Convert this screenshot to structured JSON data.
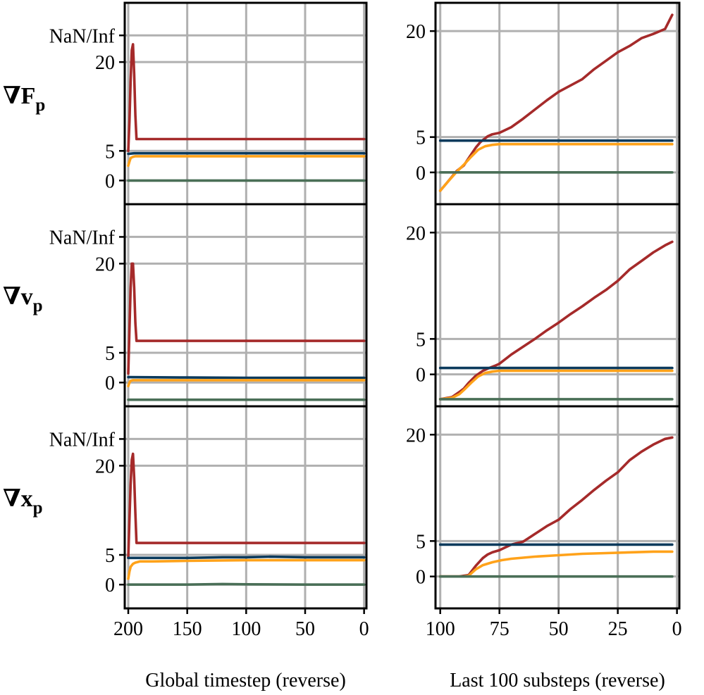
{
  "chart_data": {
    "type": "line",
    "rows": [
      {
        "label_main": "∇F",
        "label_sub": "p"
      },
      {
        "label_main": "∇v",
        "label_sub": "p"
      },
      {
        "label_main": "∇x",
        "label_sub": "p"
      }
    ],
    "columns": [
      {
        "xlabel": "Global timestep (reverse)",
        "xlim": [
          203,
          -2
        ],
        "xticks": [
          200,
          150,
          100,
          50,
          0
        ]
      },
      {
        "xlabel": "Last 100 substeps (reverse)",
        "xlim": [
          102,
          -1
        ],
        "xticks": [
          100,
          75,
          50,
          25,
          0
        ]
      }
    ],
    "colors": {
      "red": "#a52a2a",
      "blue": "#0b3a5c",
      "orange": "#ffa21a",
      "green": "#4a6f57"
    },
    "panels": [
      {
        "row": 0,
        "col": 0,
        "ylim": [
          -4,
          30
        ],
        "yticks": [
          {
            "v": 0,
            "label": "0"
          },
          {
            "v": 5,
            "label": "5"
          },
          {
            "v": 20,
            "label": "20"
          },
          {
            "v": 24.5,
            "label": "NaN/Inf"
          }
        ],
        "series": [
          {
            "name": "red",
            "color": "#a52a2a",
            "x": [
              200,
              199,
              198,
              197,
              196,
              195,
              194,
              193,
              192,
              180,
              0
            ],
            "y": [
              5,
              10,
              17,
              22,
              23,
              18,
              11,
              7,
              7,
              7,
              7
            ]
          },
          {
            "name": "blue",
            "color": "#0b3a5c",
            "x": [
              200,
              195,
              150,
              100,
              50,
              0
            ],
            "y": [
              4.5,
              4.6,
              4.6,
              4.6,
              4.6,
              4.6
            ]
          },
          {
            "name": "orange",
            "color": "#ffa21a",
            "x": [
              200,
              199,
              198,
              196,
              194,
              190,
              150,
              100,
              50,
              0
            ],
            "y": [
              2.5,
              3.2,
              3.8,
              4,
              4.1,
              4.1,
              4.1,
              4.1,
              4.1,
              4.1
            ]
          },
          {
            "name": "green",
            "color": "#4a6f57",
            "x": [
              200,
              0
            ],
            "y": [
              0,
              0
            ]
          }
        ]
      },
      {
        "row": 0,
        "col": 1,
        "ylim": [
          -4.5,
          24
        ],
        "yticks": [
          {
            "v": 0,
            "label": "0"
          },
          {
            "v": 5,
            "label": "5"
          },
          {
            "v": 20,
            "label": "20"
          }
        ],
        "series": [
          {
            "name": "red",
            "color": "#a52a2a",
            "x": [
              100,
              97,
              93,
              90,
              88,
              85,
              83,
              80,
              78,
              75,
              70,
              65,
              60,
              55,
              50,
              45,
              40,
              35,
              30,
              25,
              20,
              15,
              10,
              5,
              2
            ],
            "y": [
              -2.6,
              -1.4,
              0.2,
              1.0,
              2.0,
              3.5,
              4.3,
              5.1,
              5.4,
              5.6,
              6.4,
              7.6,
              8.9,
              10.2,
              11.4,
              12.3,
              13.2,
              14.6,
              15.8,
              17.0,
              17.9,
              19.0,
              19.6,
              20.3,
              22.3
            ]
          },
          {
            "name": "blue",
            "color": "#0b3a5c",
            "x": [
              100,
              2
            ],
            "y": [
              4.5,
              4.5
            ]
          },
          {
            "name": "orange",
            "color": "#ffa21a",
            "x": [
              100,
              97,
              93,
              90,
              87,
              84,
              81,
              78,
              75,
              70,
              50,
              25,
              2
            ],
            "y": [
              -2.6,
              -1.4,
              0.1,
              1.1,
              2.2,
              3.2,
              3.7,
              3.9,
              4.0,
              4.0,
              4.0,
              4.0,
              4.0
            ]
          },
          {
            "name": "green",
            "color": "#4a6f57",
            "x": [
              100,
              2
            ],
            "y": [
              0,
              0
            ]
          }
        ]
      },
      {
        "row": 1,
        "col": 0,
        "ylim": [
          -4,
          30
        ],
        "yticks": [
          {
            "v": 0,
            "label": "0"
          },
          {
            "v": 5,
            "label": "5"
          },
          {
            "v": 20,
            "label": "20"
          },
          {
            "v": 24.5,
            "label": "NaN/Inf"
          }
        ],
        "series": [
          {
            "name": "red",
            "color": "#a52a2a",
            "x": [
              200,
              199,
              198,
              197,
              196,
              195,
              194,
              193,
              192,
              180,
              0
            ],
            "y": [
              1.5,
              9,
              16,
              20,
              20,
              16,
              10,
              7,
              7,
              7,
              7
            ]
          },
          {
            "name": "blue",
            "color": "#0b3a5c",
            "x": [
              200,
              150,
              100,
              50,
              0
            ],
            "y": [
              0.9,
              0.85,
              0.8,
              0.8,
              0.8
            ]
          },
          {
            "name": "orange",
            "color": "#ffa21a",
            "x": [
              200,
              199,
              198,
              196,
              190,
              0
            ],
            "y": [
              -0.6,
              0,
              0.3,
              0.4,
              0.4,
              0.4
            ]
          },
          {
            "name": "green",
            "color": "#4a6f57",
            "x": [
              200,
              0
            ],
            "y": [
              -2.9,
              -2.9
            ]
          }
        ]
      },
      {
        "row": 1,
        "col": 1,
        "ylim": [
          -4.5,
          24
        ],
        "yticks": [
          {
            "v": 0,
            "label": "0"
          },
          {
            "v": 5,
            "label": "5"
          },
          {
            "v": 20,
            "label": "20"
          }
        ],
        "series": [
          {
            "name": "red",
            "color": "#a52a2a",
            "x": [
              100,
              95,
              92,
              90,
              88,
              85,
              82,
              80,
              77,
              75,
              70,
              65,
              60,
              55,
              50,
              45,
              40,
              35,
              30,
              25,
              20,
              15,
              10,
              5,
              2
            ],
            "y": [
              -3.5,
              -3.2,
              -2.5,
              -2.0,
              -1.2,
              -0.2,
              0.5,
              0.8,
              1.2,
              1.5,
              2.8,
              3.9,
              5.0,
              6.2,
              7.3,
              8.5,
              9.6,
              10.8,
              11.9,
              13.2,
              14.8,
              16.0,
              17.2,
              18.2,
              18.7
            ]
          },
          {
            "name": "blue",
            "color": "#0b3a5c",
            "x": [
              100,
              2
            ],
            "y": [
              0.9,
              0.9
            ]
          },
          {
            "name": "orange",
            "color": "#ffa21a",
            "x": [
              100,
              95,
              92,
              90,
              87,
              84,
              81,
              78,
              75,
              70,
              50,
              25,
              2
            ],
            "y": [
              -3.5,
              -3.3,
              -2.8,
              -2.2,
              -1.2,
              -0.3,
              0.2,
              0.4,
              0.5,
              0.5,
              0.5,
              0.5,
              0.5
            ]
          },
          {
            "name": "green",
            "color": "#4a6f57",
            "x": [
              100,
              2
            ],
            "y": [
              -3.5,
              -3.5
            ]
          }
        ]
      },
      {
        "row": 2,
        "col": 0,
        "ylim": [
          -4,
          30
        ],
        "yticks": [
          {
            "v": 0,
            "label": "0"
          },
          {
            "v": 5,
            "label": "5"
          },
          {
            "v": 20,
            "label": "20"
          },
          {
            "v": 24.5,
            "label": "NaN/Inf"
          }
        ],
        "series": [
          {
            "name": "red",
            "color": "#a52a2a",
            "x": [
              200,
              199,
              198,
              197,
              196,
              195,
              194,
              193,
              192,
              180,
              0
            ],
            "y": [
              4.5,
              11,
              17,
              21,
              22,
              18,
              12,
              7,
              7,
              7,
              7
            ]
          },
          {
            "name": "blue",
            "color": "#0b3a5c",
            "x": [
              200,
              180,
              150,
              120,
              100,
              80,
              50,
              20,
              0
            ],
            "y": [
              4.5,
              4.5,
              4.5,
              4.6,
              4.6,
              4.7,
              4.6,
              4.6,
              4.6
            ]
          },
          {
            "name": "orange",
            "color": "#ffa21a",
            "x": [
              200,
              199,
              198,
              196,
              194,
              190,
              180,
              150,
              100,
              50,
              0
            ],
            "y": [
              1,
              2.2,
              3,
              3.5,
              3.7,
              3.9,
              3.9,
              4.0,
              4.1,
              4.1,
              4.1
            ]
          },
          {
            "name": "green",
            "color": "#4a6f57",
            "x": [
              200,
              150,
              120,
              100,
              50,
              0
            ],
            "y": [
              0,
              0,
              0.1,
              0.05,
              0,
              0
            ]
          }
        ]
      },
      {
        "row": 2,
        "col": 1,
        "ylim": [
          -4.5,
          24
        ],
        "yticks": [
          {
            "v": 0,
            "label": "0"
          },
          {
            "v": 5,
            "label": "5"
          },
          {
            "v": 20,
            "label": "20"
          }
        ],
        "series": [
          {
            "name": "red",
            "color": "#a52a2a",
            "x": [
              100,
              92,
              88,
              85,
              82,
              80,
              78,
              75,
              70,
              65,
              60,
              55,
              50,
              45,
              40,
              35,
              30,
              25,
              20,
              15,
              10,
              5,
              2
            ],
            "y": [
              0,
              0,
              0.2,
              1.5,
              2.6,
              3.1,
              3.4,
              3.7,
              4.5,
              4.9,
              6.0,
              7.1,
              8.0,
              9.5,
              10.8,
              12.2,
              13.5,
              14.7,
              16.4,
              17.6,
              18.6,
              19.4,
              19.6
            ]
          },
          {
            "name": "blue",
            "color": "#0b3a5c",
            "x": [
              100,
              2
            ],
            "y": [
              4.5,
              4.5
            ]
          },
          {
            "name": "orange",
            "color": "#ffa21a",
            "x": [
              100,
              90,
              88,
              85,
              82,
              78,
              74,
              70,
              60,
              50,
              40,
              30,
              20,
              10,
              2
            ],
            "y": [
              0,
              0,
              0.1,
              1.0,
              1.6,
              2.0,
              2.3,
              2.5,
              2.8,
              3.0,
              3.2,
              3.3,
              3.4,
              3.5,
              3.5
            ]
          },
          {
            "name": "green",
            "color": "#4a6f57",
            "x": [
              100,
              2
            ],
            "y": [
              0,
              0
            ]
          }
        ]
      }
    ]
  }
}
